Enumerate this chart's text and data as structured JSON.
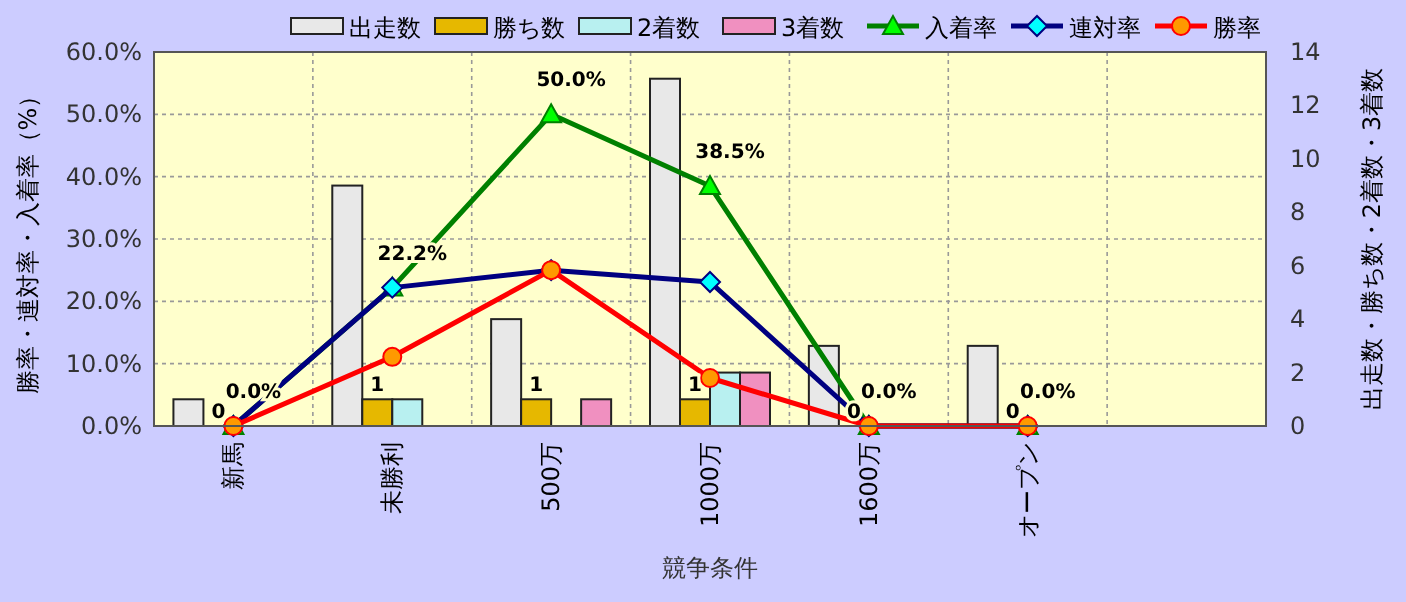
{
  "chart_data": {
    "type": "bar",
    "xlabel": "競争条件",
    "ylabel": "勝率・連対率・入着率（%）",
    "y2label": "出走数・勝ち数・2着数・3着数",
    "categories": [
      "新馬",
      "未勝利",
      "500万",
      "1000万",
      "1600万",
      "オープン",
      null
    ],
    "series": [
      {
        "name": "出走数",
        "axis": "y2",
        "color": "#e8e8e8",
        "values": [
          1,
          9,
          4,
          13,
          3,
          3,
          null
        ]
      },
      {
        "name": "勝ち数",
        "axis": "y2",
        "color": "#e6b800",
        "values": [
          0,
          1,
          1,
          1,
          0,
          0,
          null
        ],
        "value_labels": [
          "0",
          "1",
          "1",
          "1",
          "0",
          "0",
          null
        ]
      },
      {
        "name": "2着数",
        "axis": "y2",
        "color": "#b8f0f0",
        "values": [
          0,
          1,
          0,
          2,
          0,
          0,
          null
        ]
      },
      {
        "name": "3着数",
        "axis": "y2",
        "color": "#f090c0",
        "values": [
          0,
          0,
          1,
          2,
          0,
          0,
          null
        ]
      },
      {
        "name": "入着率",
        "type": "line",
        "axis": "y",
        "color": "#008000",
        "marker": "triangle",
        "values": [
          0,
          22.2,
          50.0,
          38.5,
          0,
          0,
          null
        ],
        "value_labels": [
          "0.0%",
          "22.2%",
          "50.0%",
          "38.5%",
          "0.0%",
          "0.0%",
          null
        ]
      },
      {
        "name": "連対率",
        "type": "line",
        "axis": "y",
        "color": "#000080",
        "marker": "diamond",
        "values": [
          0,
          22.2,
          25.0,
          23.1,
          0,
          0,
          null
        ]
      },
      {
        "name": "勝率",
        "type": "line",
        "axis": "y",
        "color": "#ff0000",
        "marker": "circle",
        "values": [
          0,
          11.1,
          25.0,
          7.7,
          0,
          0,
          null
        ]
      }
    ],
    "ylim": [
      0,
      60
    ],
    "yticks": [
      {
        "value": 0,
        "label": "0.0%"
      },
      {
        "value": 10,
        "label": "10.0%"
      },
      {
        "value": 20,
        "label": "20.0%"
      },
      {
        "value": 30,
        "label": "30.0%"
      },
      {
        "value": 40,
        "label": "40.0%"
      },
      {
        "value": 50,
        "label": "50.0%"
      },
      {
        "value": 60,
        "label": "60.0%"
      }
    ],
    "y2lim": [
      0,
      14
    ],
    "y2ticks": [
      0,
      2,
      4,
      6,
      8,
      10,
      12,
      14
    ],
    "grid": true,
    "legend": "top"
  }
}
